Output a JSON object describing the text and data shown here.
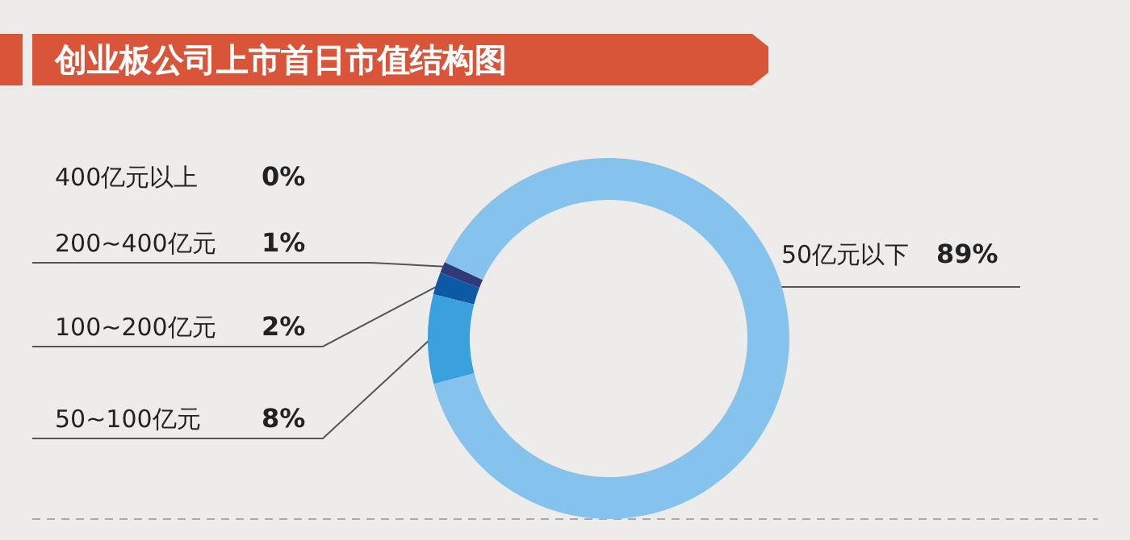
{
  "chart_data": {
    "type": "donut",
    "title": "创业板公司上市首日市值结构图",
    "categories": [
      "400亿元以上",
      "200~400亿元",
      "100~200亿元",
      "50~100亿元",
      "50亿元以下"
    ],
    "values": [
      0,
      1,
      2,
      8,
      89
    ],
    "value_labels": [
      "0%",
      "1%",
      "2%",
      "8%",
      "89%"
    ],
    "colors": [
      "#1c2550",
      "#2e3a7a",
      "#0c5aa6",
      "#3aa0de",
      "#86c3ec"
    ],
    "legend": false
  }
}
